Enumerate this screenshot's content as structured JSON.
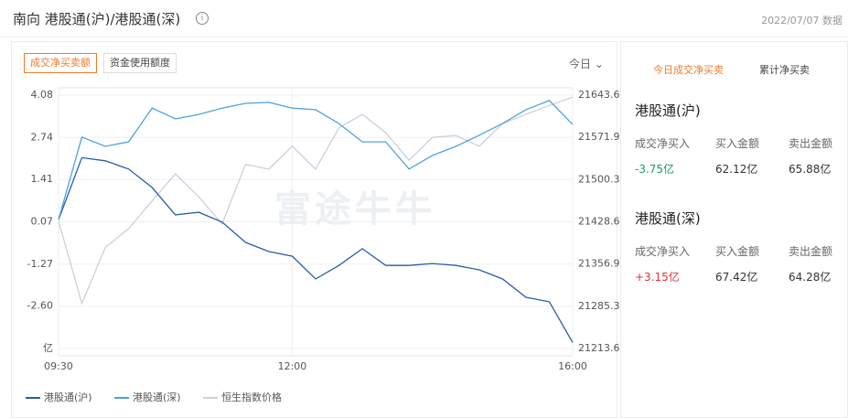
{
  "header": {
    "title": "南向 港股通(沪)/港股通(深)",
    "date": "2022/07/07 数据"
  },
  "tabs": [
    "成交净买卖额",
    "资金使用额度"
  ],
  "period": "今日",
  "watermark": "富途牛牛",
  "chart_data": {
    "type": "line",
    "categories": [
      "09:30",
      null,
      null,
      null,
      null,
      null,
      null,
      null,
      null,
      null,
      "12:00",
      null,
      null,
      null,
      null,
      null,
      null,
      null,
      null,
      null,
      null,
      null,
      "16:00"
    ],
    "series": [
      {
        "name": "港股通(沪)",
        "color": "#2a5caa",
        "values": [
          0.14,
          2.1,
          2.0,
          1.74,
          1.16,
          0.29,
          0.37,
          0.06,
          -0.58,
          -0.87,
          -1.02,
          -1.74,
          -1.31,
          -0.78,
          -1.31,
          -1.31,
          -1.25,
          -1.31,
          -1.45,
          -1.74,
          -2.32,
          -2.46,
          -3.75
        ]
      },
      {
        "name": "港股通(深)",
        "color": "#4da3e0",
        "values": [
          0.14,
          2.75,
          2.46,
          2.6,
          3.67,
          3.33,
          3.47,
          3.67,
          3.82,
          3.85,
          3.67,
          3.62,
          3.18,
          2.6,
          2.6,
          1.74,
          2.17,
          2.46,
          2.81,
          3.18,
          3.62,
          3.91,
          3.15
        ]
      },
      {
        "name": "恒生指数价格",
        "color": "#c9d1dd",
        "axis": "y2",
        "values": [
          21430,
          21290,
          21385,
          21417,
          21464,
          21510,
          21471,
          21425,
          21526,
          21518,
          21557,
          21518,
          21588,
          21611,
          21580,
          21533,
          21572,
          21575,
          21557,
          21595,
          21611,
          21626,
          21640
        ]
      }
    ],
    "ylim": [
      -3.94,
      4.08
    ],
    "yticks": [
      4.08,
      2.74,
      1.41,
      0.07,
      -1.27,
      {
        "value": -2.6,
        "label": "-2.60"
      },
      {
        "value": -3.94,
        "label": "亿"
      }
    ],
    "y2lim": [
      21213.6,
      21643.6
    ],
    "y2ticks": [
      21643.6,
      21571.9,
      21500.3,
      21428.6,
      21356.9,
      21285.3,
      21213.6
    ],
    "grid": true
  },
  "panel": {
    "tabs": [
      "今日成交净买卖",
      "累计净买卖"
    ],
    "markets": [
      {
        "name": "港股通(沪)",
        "labels": [
          "成交净买入",
          "买入金额",
          "卖出金额"
        ],
        "values": [
          "-3.75亿",
          "62.12亿",
          "65.88亿"
        ],
        "net_color": "#1aa05a"
      },
      {
        "name": "港股通(深)",
        "labels": [
          "成交净买入",
          "买入金额",
          "卖出金额"
        ],
        "values": [
          "+3.15亿",
          "67.42亿",
          "64.28亿"
        ],
        "net_color": "#e0343d"
      }
    ]
  }
}
